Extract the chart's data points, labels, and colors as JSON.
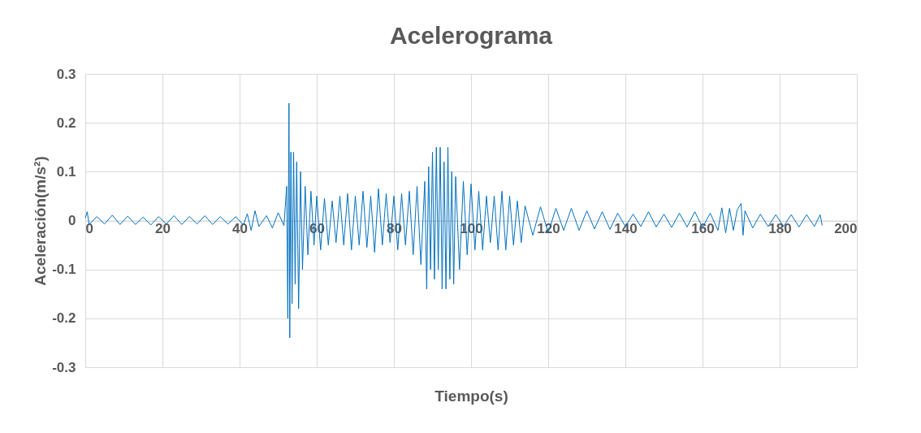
{
  "chart_data": {
    "type": "line",
    "title": "Acelerograma",
    "xlabel": "Tiempo(s)",
    "ylabel": "Aceleración(m/s²)",
    "xlim": [
      0,
      200
    ],
    "xticks": [
      0,
      20,
      40,
      60,
      80,
      100,
      120,
      140,
      160,
      180,
      200
    ],
    "ylim": [
      -0.3,
      0.3
    ],
    "yticks": [
      -0.3,
      -0.2,
      -0.1,
      0,
      0.1,
      0.2,
      0.3
    ],
    "grid": true,
    "legend": false,
    "marker": "none",
    "line_style": "solid",
    "series": [
      {
        "color": "#0070c0",
        "x": [
          0,
          0.5,
          1,
          3,
          5,
          7,
          9,
          11,
          13,
          15,
          17,
          19,
          21,
          23,
          25,
          27,
          29,
          31,
          33,
          35,
          37,
          39,
          41,
          42,
          43,
          44,
          45,
          47,
          48.5,
          50,
          51.5,
          52.2,
          52.5,
          52.8,
          53.0,
          53.3,
          53.6,
          54.0,
          54.4,
          54.8,
          55.3,
          55.8,
          56.3,
          57,
          57.7,
          58.5,
          59.3,
          60,
          61,
          62,
          63,
          64,
          65,
          66,
          67,
          68,
          69,
          70,
          71,
          72,
          73,
          74,
          75,
          76,
          77,
          78,
          79,
          80,
          81,
          82,
          83,
          84,
          85,
          86,
          87,
          88,
          88.5,
          89,
          89.5,
          90,
          90.5,
          91,
          91.5,
          92,
          92.5,
          93,
          93.5,
          94,
          94.5,
          95,
          95.5,
          96,
          97,
          98,
          99,
          100,
          101,
          102,
          103,
          104,
          105,
          106,
          107,
          108,
          109,
          110,
          111,
          112,
          113,
          114,
          116,
          118,
          120,
          122,
          124,
          126,
          128,
          130,
          132,
          134,
          136,
          138,
          140,
          142,
          144,
          146,
          148,
          150,
          152,
          154,
          156,
          158,
          160,
          162,
          164,
          165,
          166,
          167,
          168,
          169,
          170,
          170.5,
          171,
          173,
          175,
          177,
          179,
          181,
          183,
          185,
          187,
          189,
          190.5,
          191
        ],
        "values": [
          0.005,
          0.018,
          -0.008,
          0.008,
          -0.007,
          0.011,
          -0.008,
          0.009,
          -0.008,
          0.007,
          -0.009,
          0.008,
          -0.007,
          0.01,
          -0.008,
          0.008,
          -0.007,
          0.01,
          -0.008,
          0.008,
          -0.007,
          0.008,
          -0.009,
          0.014,
          -0.02,
          0.02,
          -0.012,
          0.01,
          -0.015,
          0.016,
          -0.01,
          0.07,
          -0.2,
          0.24,
          -0.24,
          0.14,
          -0.17,
          0.14,
          -0.13,
          0.12,
          -0.18,
          0.1,
          -0.1,
          0.07,
          -0.07,
          0.06,
          -0.05,
          0.05,
          -0.06,
          0.045,
          -0.05,
          0.04,
          -0.045,
          0.05,
          -0.05,
          0.055,
          -0.06,
          0.05,
          -0.05,
          0.06,
          -0.055,
          0.05,
          -0.065,
          0.065,
          -0.05,
          0.055,
          -0.045,
          0.05,
          -0.06,
          0.055,
          -0.05,
          0.06,
          -0.07,
          0.07,
          -0.09,
          0.08,
          -0.14,
          0.11,
          -0.1,
          0.14,
          -0.12,
          0.15,
          -0.1,
          0.15,
          -0.14,
          0.12,
          -0.14,
          0.15,
          -0.12,
          0.1,
          -0.13,
          0.09,
          -0.1,
          0.08,
          -0.07,
          0.075,
          -0.06,
          0.06,
          -0.06,
          0.05,
          -0.045,
          0.05,
          -0.06,
          0.06,
          -0.06,
          0.05,
          -0.05,
          0.04,
          -0.045,
          0.03,
          -0.03,
          0.028,
          -0.025,
          0.025,
          -0.02,
          0.025,
          -0.02,
          0.02,
          -0.017,
          0.018,
          -0.018,
          0.015,
          -0.012,
          0.013,
          -0.012,
          0.018,
          -0.013,
          0.013,
          -0.014,
          0.015,
          -0.013,
          0.018,
          -0.014,
          0.015,
          -0.02,
          0.026,
          -0.025,
          0.025,
          -0.02,
          0.022,
          0.035,
          -0.03,
          0.02,
          -0.015,
          0.013,
          -0.012,
          0.012,
          -0.012,
          0.012,
          -0.013,
          0.012,
          -0.012,
          0.012,
          -0.01
        ]
      }
    ]
  }
}
